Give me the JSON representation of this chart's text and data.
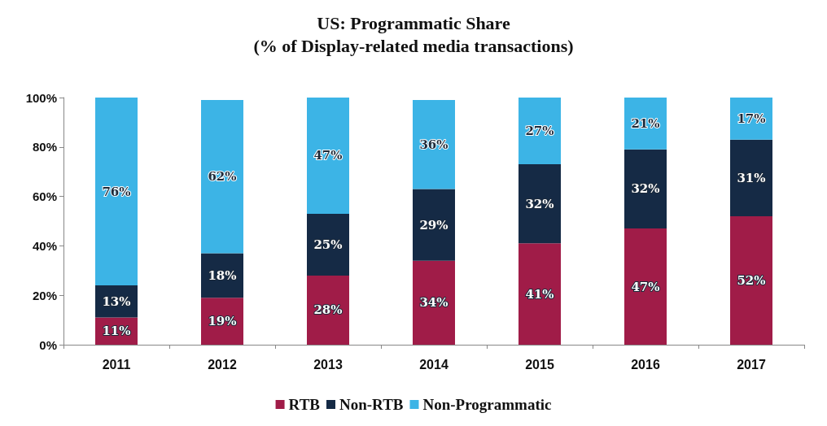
{
  "chart_data": {
    "type": "bar",
    "stacked": true,
    "title": "US: Programmatic Share",
    "subtitle": "(% of Display-related media transactions)",
    "categories": [
      "2011",
      "2012",
      "2013",
      "2014",
      "2015",
      "2016",
      "2017"
    ],
    "series": [
      {
        "name": "RTB",
        "color": "#a01c48",
        "values": [
          11,
          19,
          28,
          34,
          41,
          47,
          52
        ],
        "value_labels": [
          "11%",
          "19%",
          "28%",
          "34%",
          "41%",
          "47%",
          "52%"
        ]
      },
      {
        "name": "Non-RTB",
        "color": "#152a45",
        "values": [
          13,
          18,
          25,
          29,
          32,
          32,
          31
        ],
        "value_labels": [
          "13%",
          "18%",
          "25%",
          "29%",
          "32%",
          "32%",
          "31%"
        ]
      },
      {
        "name": "Non-Programmatic",
        "color": "#3cb4e6",
        "values": [
          76,
          62,
          47,
          36,
          27,
          21,
          17
        ],
        "value_labels": [
          "76%",
          "62%",
          "47%",
          "36%",
          "27%",
          "21%",
          "17%"
        ]
      }
    ],
    "ylim": [
      0,
      100
    ],
    "yticks": [
      {
        "value": 0,
        "label": "0%"
      },
      {
        "value": 20,
        "label": "20%"
      },
      {
        "value": 40,
        "label": "40%"
      },
      {
        "value": 60,
        "label": "60%"
      },
      {
        "value": 80,
        "label": "80%"
      },
      {
        "value": 100,
        "label": "100%"
      }
    ],
    "grid": false,
    "legend": "bottom"
  }
}
